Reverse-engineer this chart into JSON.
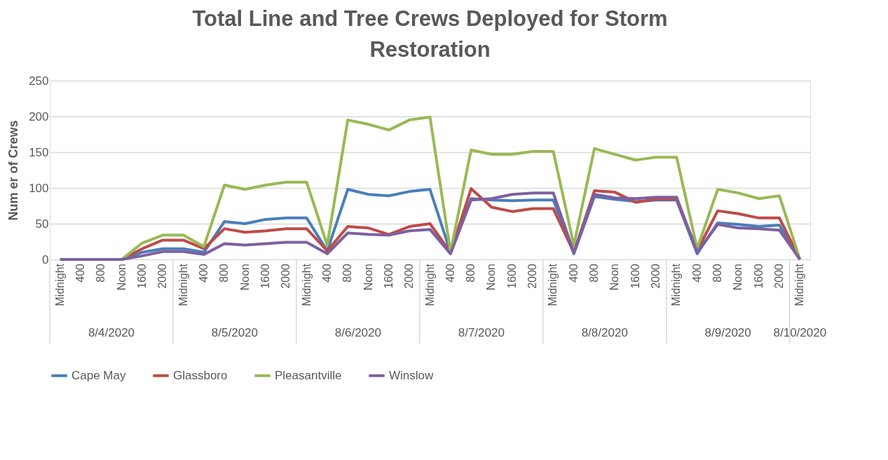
{
  "chart_data": {
    "type": "line",
    "title": "Total Line and Tree Crews Deployed for Storm Restoration",
    "ylabel": "Num er of Crews",
    "categories": [
      "Midnight",
      "400",
      "800",
      "Noon",
      "1600",
      "2000",
      "Midnight",
      "400",
      "800",
      "Noon",
      "1600",
      "2000",
      "Midnight",
      "400",
      "800",
      "Noon",
      "1600",
      "2000",
      "Midnight",
      "400",
      "800",
      "Noon",
      "1600",
      "2000",
      "Midnight",
      "400",
      "800",
      "Noon",
      "1600",
      "2000",
      "Midnight",
      "400",
      "800",
      "Noon",
      "1600",
      "2000",
      "Midnight"
    ],
    "annotations": [
      "8/4/2020",
      "8/5/2020",
      "8/6/2020",
      "8/7/2020",
      "8/8/2020",
      "8/9/2020",
      "8/10/2020"
    ],
    "series": [
      {
        "name": "Cape May",
        "color": "#4a7ebb",
        "values": [
          null,
          null,
          0,
          0,
          10,
          15,
          15,
          10,
          53,
          50,
          56,
          58,
          58,
          12,
          98,
          91,
          89,
          95,
          98,
          10,
          85,
          83,
          82,
          83,
          83,
          8,
          88,
          84,
          81,
          83,
          83,
          8,
          51,
          49,
          46,
          48,
          0
        ]
      },
      {
        "name": "Glassboro",
        "color": "#be4b48",
        "values": [
          null,
          null,
          0,
          0,
          15,
          27,
          27,
          15,
          43,
          38,
          40,
          43,
          43,
          12,
          46,
          44,
          35,
          46,
          50,
          10,
          99,
          73,
          67,
          71,
          71,
          10,
          96,
          94,
          80,
          84,
          84,
          12,
          68,
          64,
          58,
          58,
          0
        ]
      },
      {
        "name": "Pleasantville",
        "color": "#98b954",
        "values": [
          null,
          null,
          0,
          0,
          23,
          34,
          34,
          18,
          104,
          98,
          104,
          108,
          108,
          20,
          195,
          189,
          181,
          195,
          199,
          10,
          153,
          147,
          147,
          151,
          151,
          20,
          155,
          147,
          139,
          143,
          143,
          15,
          98,
          93,
          85,
          89,
          0
        ]
      },
      {
        "name": "Winslow",
        "color": "#7d60a0",
        "values": [
          0,
          0,
          0,
          0,
          5,
          11,
          11,
          7,
          22,
          20,
          22,
          24,
          24,
          8,
          37,
          35,
          34,
          40,
          42,
          8,
          83,
          85,
          91,
          93,
          93,
          10,
          91,
          86,
          85,
          87,
          87,
          10,
          49,
          44,
          43,
          41,
          0
        ]
      }
    ],
    "ylim": [
      0,
      250
    ],
    "yticks": [
      0,
      50,
      100,
      150,
      200,
      250
    ],
    "grid": "y",
    "legend": "bottom",
    "line_style": "solid",
    "marker": "none"
  }
}
